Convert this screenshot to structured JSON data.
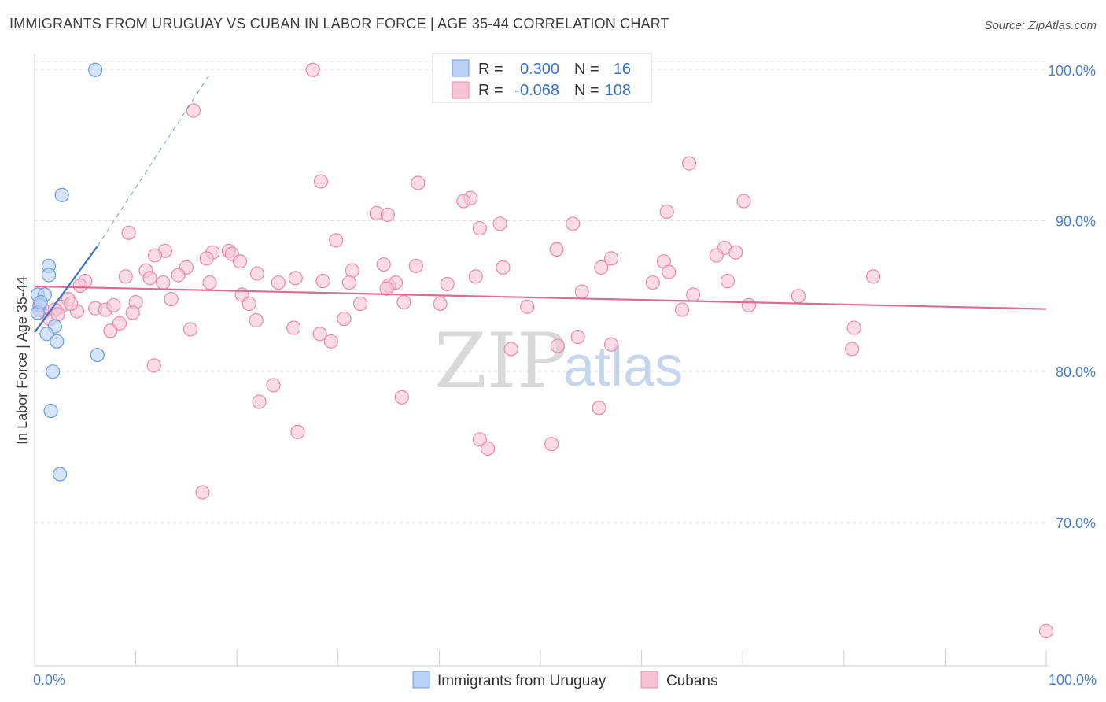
{
  "title": "IMMIGRANTS FROM URUGUAY VS CUBAN IN LABOR FORCE | AGE 35-44 CORRELATION CHART",
  "source": "Source: ZipAtlas.com",
  "watermark": {
    "zip": "ZIP",
    "atlas": "atlas"
  },
  "colors": {
    "blue_fill": "#b9d2f3",
    "blue_stroke": "#6a9be0",
    "blue_line": "#3a72d0",
    "pink_fill": "#f8c5d6",
    "pink_stroke": "#e98aaa",
    "pink_line": "#e06a95",
    "grid": "#e2e2e2",
    "axis_label": "#4a7fd0"
  },
  "legend": {
    "r_label": "R =",
    "n_label": "N =",
    "rows": [
      {
        "series": "Immigrants from Uruguay",
        "r": "0.300",
        "n": "16",
        "color": "blue"
      },
      {
        "series": "Cubans",
        "r": "-0.068",
        "n": "108",
        "color": "pink"
      }
    ]
  },
  "chart_data": {
    "type": "scatter",
    "title": "IMMIGRANTS FROM URUGUAY VS CUBAN IN LABOR FORCE | AGE 35-44 CORRELATION CHART",
    "xlabel": "",
    "ylabel": "In Labor Force | Age 35-44",
    "xlim": [
      0,
      100
    ],
    "ylim": [
      60.5,
      101.5
    ],
    "x_tick_labels": [
      "0.0%",
      "100.0%"
    ],
    "y_ticks": [
      70,
      80,
      90,
      100
    ],
    "y_tick_labels": [
      "70.0%",
      "80.0%",
      "90.0%",
      "100.0%"
    ],
    "grid": true,
    "series": [
      {
        "name": "Immigrants from Uruguay",
        "color": "blue",
        "points": [
          [
            6.0,
            100.0
          ],
          [
            2.7,
            91.7
          ],
          [
            1.4,
            87.0
          ],
          [
            1.4,
            86.4
          ],
          [
            0.3,
            85.1
          ],
          [
            1.0,
            85.1
          ],
          [
            0.5,
            84.4
          ],
          [
            0.3,
            83.9
          ],
          [
            2.0,
            83.0
          ],
          [
            1.2,
            82.5
          ],
          [
            2.2,
            82.0
          ],
          [
            6.2,
            81.1
          ],
          [
            1.8,
            80.0
          ],
          [
            1.6,
            77.4
          ],
          [
            2.5,
            73.2
          ],
          [
            0.6,
            84.6
          ]
        ],
        "trend_solid": {
          "x": [
            0,
            6.2
          ],
          "y": [
            82.6,
            88.3
          ]
        },
        "trend_dashed": {
          "x": [
            6.2,
            17.4
          ],
          "y": [
            88.3,
            99.8
          ]
        }
      },
      {
        "name": "Cubans",
        "color": "pink",
        "points": [
          [
            27.5,
            100.0
          ],
          [
            15.7,
            97.3
          ],
          [
            64.7,
            93.8
          ],
          [
            28.3,
            92.6
          ],
          [
            37.9,
            92.5
          ],
          [
            43.1,
            91.5
          ],
          [
            42.4,
            91.3
          ],
          [
            70.1,
            91.3
          ],
          [
            33.8,
            90.5
          ],
          [
            34.9,
            90.4
          ],
          [
            62.5,
            90.6
          ],
          [
            46.0,
            89.8
          ],
          [
            53.2,
            89.8
          ],
          [
            44.0,
            89.5
          ],
          [
            9.3,
            89.2
          ],
          [
            29.8,
            88.7
          ],
          [
            12.9,
            88.0
          ],
          [
            17.6,
            87.9
          ],
          [
            19.2,
            88.0
          ],
          [
            51.6,
            88.1
          ],
          [
            68.2,
            88.2
          ],
          [
            19.5,
            87.8
          ],
          [
            11.9,
            87.7
          ],
          [
            69.3,
            87.9
          ],
          [
            17.0,
            87.5
          ],
          [
            20.3,
            87.3
          ],
          [
            57.0,
            87.5
          ],
          [
            62.2,
            87.3
          ],
          [
            67.4,
            87.7
          ],
          [
            34.5,
            87.1
          ],
          [
            37.7,
            87.0
          ],
          [
            15.0,
            86.9
          ],
          [
            11.0,
            86.7
          ],
          [
            22.0,
            86.5
          ],
          [
            31.4,
            86.7
          ],
          [
            56.0,
            86.9
          ],
          [
            46.3,
            86.9
          ],
          [
            62.7,
            86.6
          ],
          [
            14.2,
            86.4
          ],
          [
            5.0,
            86.0
          ],
          [
            9.0,
            86.3
          ],
          [
            11.4,
            86.2
          ],
          [
            25.8,
            86.2
          ],
          [
            28.5,
            86.0
          ],
          [
            43.6,
            86.3
          ],
          [
            61.1,
            85.9
          ],
          [
            68.5,
            86.0
          ],
          [
            82.9,
            86.3
          ],
          [
            4.5,
            85.7
          ],
          [
            12.7,
            85.9
          ],
          [
            17.3,
            85.9
          ],
          [
            24.1,
            85.9
          ],
          [
            31.1,
            85.9
          ],
          [
            35.0,
            85.7
          ],
          [
            35.7,
            85.9
          ],
          [
            40.8,
            85.8
          ],
          [
            54.1,
            85.3
          ],
          [
            65.1,
            85.1
          ],
          [
            75.5,
            85.0
          ],
          [
            34.8,
            85.5
          ],
          [
            20.5,
            85.1
          ],
          [
            3.3,
            84.8
          ],
          [
            2.6,
            84.3
          ],
          [
            6.0,
            84.2
          ],
          [
            10.0,
            84.6
          ],
          [
            13.5,
            84.8
          ],
          [
            21.2,
            84.5
          ],
          [
            32.2,
            84.5
          ],
          [
            36.5,
            84.6
          ],
          [
            40.1,
            84.5
          ],
          [
            48.7,
            84.3
          ],
          [
            64.0,
            84.1
          ],
          [
            70.6,
            84.4
          ],
          [
            1.0,
            84.0
          ],
          [
            2.0,
            84.1
          ],
          [
            4.2,
            84.0
          ],
          [
            7.0,
            84.1
          ],
          [
            7.8,
            84.4
          ],
          [
            9.7,
            83.9
          ],
          [
            1.5,
            83.5
          ],
          [
            8.4,
            83.2
          ],
          [
            21.9,
            83.4
          ],
          [
            30.6,
            83.5
          ],
          [
            28.2,
            82.5
          ],
          [
            15.4,
            82.8
          ],
          [
            25.6,
            82.9
          ],
          [
            7.5,
            82.7
          ],
          [
            29.3,
            82.0
          ],
          [
            53.7,
            82.3
          ],
          [
            51.7,
            81.7
          ],
          [
            47.1,
            81.5
          ],
          [
            57.0,
            81.8
          ],
          [
            81.0,
            82.9
          ],
          [
            80.8,
            81.5
          ],
          [
            11.8,
            80.4
          ],
          [
            23.6,
            79.1
          ],
          [
            36.3,
            78.3
          ],
          [
            22.2,
            78.0
          ],
          [
            55.8,
            77.6
          ],
          [
            26.0,
            76.0
          ],
          [
            44.0,
            75.5
          ],
          [
            44.8,
            74.9
          ],
          [
            51.1,
            75.2
          ],
          [
            16.6,
            72.0
          ],
          [
            100.0,
            62.8
          ],
          [
            3.6,
            84.5
          ],
          [
            2.3,
            83.8
          ],
          [
            0.5,
            84.1
          ]
        ],
        "trend": {
          "x": [
            0,
            100
          ],
          "y": [
            85.65,
            84.15
          ]
        }
      }
    ]
  }
}
